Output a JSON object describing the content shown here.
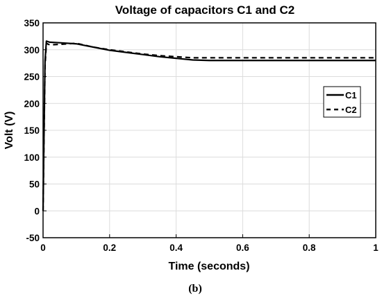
{
  "chart_data": {
    "type": "line",
    "title": "Voltage of capacitors C1 and C2",
    "xlabel": "Time (seconds)",
    "ylabel": "Volt (V)",
    "xlim": [
      0,
      1
    ],
    "ylim": [
      -50,
      350
    ],
    "xticks": [
      0,
      0.2,
      0.4,
      0.6,
      0.8,
      1
    ],
    "xtick_labels": [
      "0",
      "0.2",
      "0.4",
      "0.6",
      "0.8",
      "1"
    ],
    "yticks": [
      -50,
      0,
      50,
      100,
      150,
      200,
      250,
      300,
      350
    ],
    "ytick_labels": [
      "-50",
      "0",
      "50",
      "100",
      "150",
      "200",
      "250",
      "300",
      "350"
    ],
    "grid": true,
    "legend_position": "right",
    "series": [
      {
        "name": "C1",
        "style": "solid",
        "color": "#000000",
        "x": [
          0,
          0.003,
          0.006,
          0.01,
          0.02,
          0.05,
          0.1,
          0.15,
          0.2,
          0.25,
          0.3,
          0.35,
          0.4,
          0.45,
          0.5,
          0.6,
          0.7,
          0.8,
          0.9,
          1.0
        ],
        "y": [
          0,
          150,
          280,
          316,
          314,
          313,
          311,
          305,
          299,
          295,
          291,
          287,
          284,
          281,
          280,
          280,
          280,
          280,
          280,
          280
        ]
      },
      {
        "name": "C2",
        "style": "dashed",
        "color": "#000000",
        "x": [
          0,
          0.003,
          0.006,
          0.01,
          0.02,
          0.05,
          0.1,
          0.15,
          0.2,
          0.25,
          0.3,
          0.35,
          0.4,
          0.45,
          0.5,
          0.6,
          0.7,
          0.8,
          0.9,
          1.0
        ],
        "y": [
          0,
          145,
          270,
          312,
          309,
          310,
          312,
          305,
          300,
          296,
          292,
          289,
          287,
          285,
          285,
          285,
          285,
          285,
          285,
          285
        ]
      }
    ]
  },
  "caption": "(b)"
}
